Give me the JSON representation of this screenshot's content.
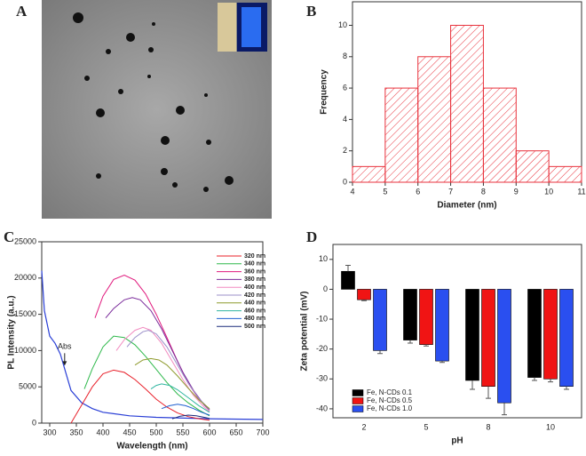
{
  "panel_labels": [
    "A",
    "B",
    "C",
    "D"
  ],
  "chart_data": [
    {
      "type": "histogram",
      "xlabel": "Diameter (nm)",
      "ylabel": "Frequency",
      "bins": [
        4,
        5,
        6,
        7,
        8,
        9,
        10,
        11
      ],
      "values": [
        1,
        6,
        8,
        10,
        6,
        2,
        1
      ],
      "color": "#e8323c",
      "xlim": [
        4,
        11
      ],
      "ylim": [
        0,
        11.5
      ],
      "xticks": [
        4,
        5,
        6,
        7,
        8,
        9,
        10,
        11
      ],
      "yticks": [
        0,
        2,
        4,
        6,
        8,
        10
      ]
    },
    {
      "type": "line",
      "xlabel": "Wavelength (nm)",
      "ylabel": "PL Intensity (a.u.)",
      "xlim": [
        285,
        700
      ],
      "ylim": [
        0,
        25000
      ],
      "xticks": [
        300,
        350,
        400,
        450,
        500,
        550,
        600,
        650,
        700
      ],
      "yticks": [
        0,
        5000,
        10000,
        15000,
        20000,
        25000
      ],
      "legend": "top-right",
      "abs_curve": {
        "label": "Abs",
        "color": "#2a3fd6",
        "x": [
          285,
          290,
          300,
          310,
          320,
          330,
          340,
          360,
          380,
          400,
          450,
          500,
          600,
          700
        ],
        "values": [
          21000,
          15500,
          12000,
          11000,
          9500,
          7000,
          4500,
          2800,
          2000,
          1500,
          1000,
          800,
          600,
          500
        ]
      },
      "series": [
        {
          "name": "320 nm",
          "color": "#e8202a",
          "x": [
            340,
            360,
            380,
            400,
            420,
            440,
            460,
            480,
            500,
            520,
            540,
            560,
            580,
            600
          ],
          "values": [
            0,
            2500,
            5000,
            6800,
            7300,
            7000,
            6000,
            4700,
            3300,
            2200,
            1400,
            900,
            600,
            400
          ]
        },
        {
          "name": "340 nm",
          "color": "#2db84a",
          "x": [
            365,
            380,
            400,
            420,
            440,
            460,
            480,
            500,
            520,
            540,
            560,
            580,
            600
          ],
          "values": [
            4700,
            7500,
            10500,
            12000,
            11800,
            10800,
            9200,
            7400,
            5600,
            4000,
            2800,
            1800,
            1000
          ]
        },
        {
          "name": "360 nm",
          "color": "#e0197d",
          "x": [
            385,
            400,
            420,
            440,
            460,
            480,
            500,
            520,
            540,
            560,
            580,
            600
          ],
          "values": [
            14500,
            17500,
            19800,
            20400,
            19700,
            17800,
            15000,
            11800,
            8500,
            5500,
            3300,
            1800
          ]
        },
        {
          "name": "380 nm",
          "color": "#7a2a9a",
          "x": [
            405,
            420,
            440,
            455,
            470,
            490,
            510,
            530,
            550,
            570,
            590,
            600
          ],
          "values": [
            14500,
            15800,
            17000,
            17300,
            17000,
            15500,
            13000,
            10000,
            7000,
            4500,
            2500,
            1800
          ]
        },
        {
          "name": "400 nm",
          "color": "#f28cc0",
          "x": [
            425,
            440,
            460,
            475,
            490,
            510,
            530,
            550,
            570,
            590,
            600
          ],
          "values": [
            10000,
            11500,
            12800,
            13200,
            12800,
            11000,
            8500,
            6000,
            3800,
            2200,
            1600
          ]
        },
        {
          "name": "420 nm",
          "color": "#9b8fc9",
          "x": [
            445,
            460,
            475,
            485,
            500,
            520,
            540,
            560,
            580,
            600
          ],
          "values": [
            10500,
            11800,
            12600,
            12800,
            12300,
            10500,
            8000,
            5500,
            3400,
            1900
          ]
        },
        {
          "name": "440 nm",
          "color": "#8e9a2c",
          "x": [
            460,
            475,
            490,
            505,
            520,
            540,
            560,
            580,
            600
          ],
          "values": [
            8000,
            8700,
            8900,
            8700,
            8000,
            6500,
            4800,
            3200,
            2000
          ]
        },
        {
          "name": "460 nm",
          "color": "#2fb5a0",
          "x": [
            490,
            500,
            510,
            525,
            540,
            560,
            580,
            600
          ],
          "values": [
            4700,
            5200,
            5400,
            5200,
            4600,
            3500,
            2400,
            1500
          ]
        },
        {
          "name": "480 nm",
          "color": "#1e5fd0",
          "x": [
            510,
            525,
            540,
            555,
            570,
            585,
            600
          ],
          "values": [
            2000,
            2400,
            2600,
            2400,
            2000,
            1500,
            1100
          ]
        },
        {
          "name": "500 nm",
          "color": "#1a2a7a",
          "x": [
            530,
            545,
            560,
            575,
            590,
            600
          ],
          "values": [
            600,
            950,
            1100,
            1000,
            800,
            650
          ]
        }
      ]
    },
    {
      "type": "bar",
      "xlabel": "pH",
      "ylabel": "Zeta potential (mV)",
      "categories": [
        "2",
        "5",
        "8",
        "10"
      ],
      "ylim": [
        -43,
        15
      ],
      "yticks": [
        -40,
        -30,
        -20,
        -10,
        0,
        10
      ],
      "legend": "bottom-left",
      "series": [
        {
          "name": "Fe, N-CDs 0.1",
          "color": "#000000",
          "values": [
            6,
            -17,
            -30.5,
            -29.5
          ],
          "errors": [
            2,
            1,
            3,
            1
          ]
        },
        {
          "name": "Fe, N-CDs 0.5",
          "color": "#f01414",
          "values": [
            -3.5,
            -18.5,
            -32.5,
            -30
          ],
          "errors": [
            0.3,
            0.5,
            4,
            1
          ]
        },
        {
          "name": "Fe, N-CDs 1.0",
          "color": "#2a4ff0",
          "values": [
            -20.5,
            -24,
            -38,
            -32.5
          ],
          "errors": [
            1,
            0.5,
            4,
            1
          ]
        }
      ]
    }
  ]
}
